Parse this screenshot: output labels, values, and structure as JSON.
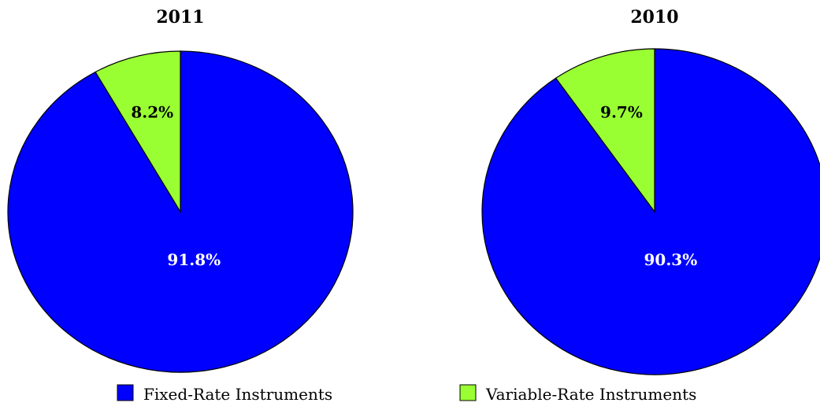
{
  "chart_data": [
    {
      "type": "pie",
      "title": "2011",
      "slices": [
        {
          "name": "Fixed-Rate Instruments",
          "value": 91.8,
          "label": "91.8%"
        },
        {
          "name": "Variable-Rate Instruments",
          "value": 8.2,
          "label": "8.2%"
        }
      ]
    },
    {
      "type": "pie",
      "title": "2010",
      "slices": [
        {
          "name": "Fixed-Rate Instruments",
          "value": 90.3,
          "label": "90.3%"
        },
        {
          "name": "Variable-Rate Instruments",
          "value": 9.7,
          "label": "9.7%"
        }
      ]
    }
  ],
  "legend": {
    "items": [
      {
        "label": "Fixed-Rate Instruments",
        "color": "#0000FF"
      },
      {
        "label": "Variable-Rate Instruments",
        "color": "#99FF33"
      }
    ]
  },
  "colors": {
    "Fixed-Rate Instruments": "#0000FF",
    "Variable-Rate Instruments": "#99FF33",
    "label_on_fixed": "#FFFFFF",
    "label_on_variable": "#000000"
  }
}
